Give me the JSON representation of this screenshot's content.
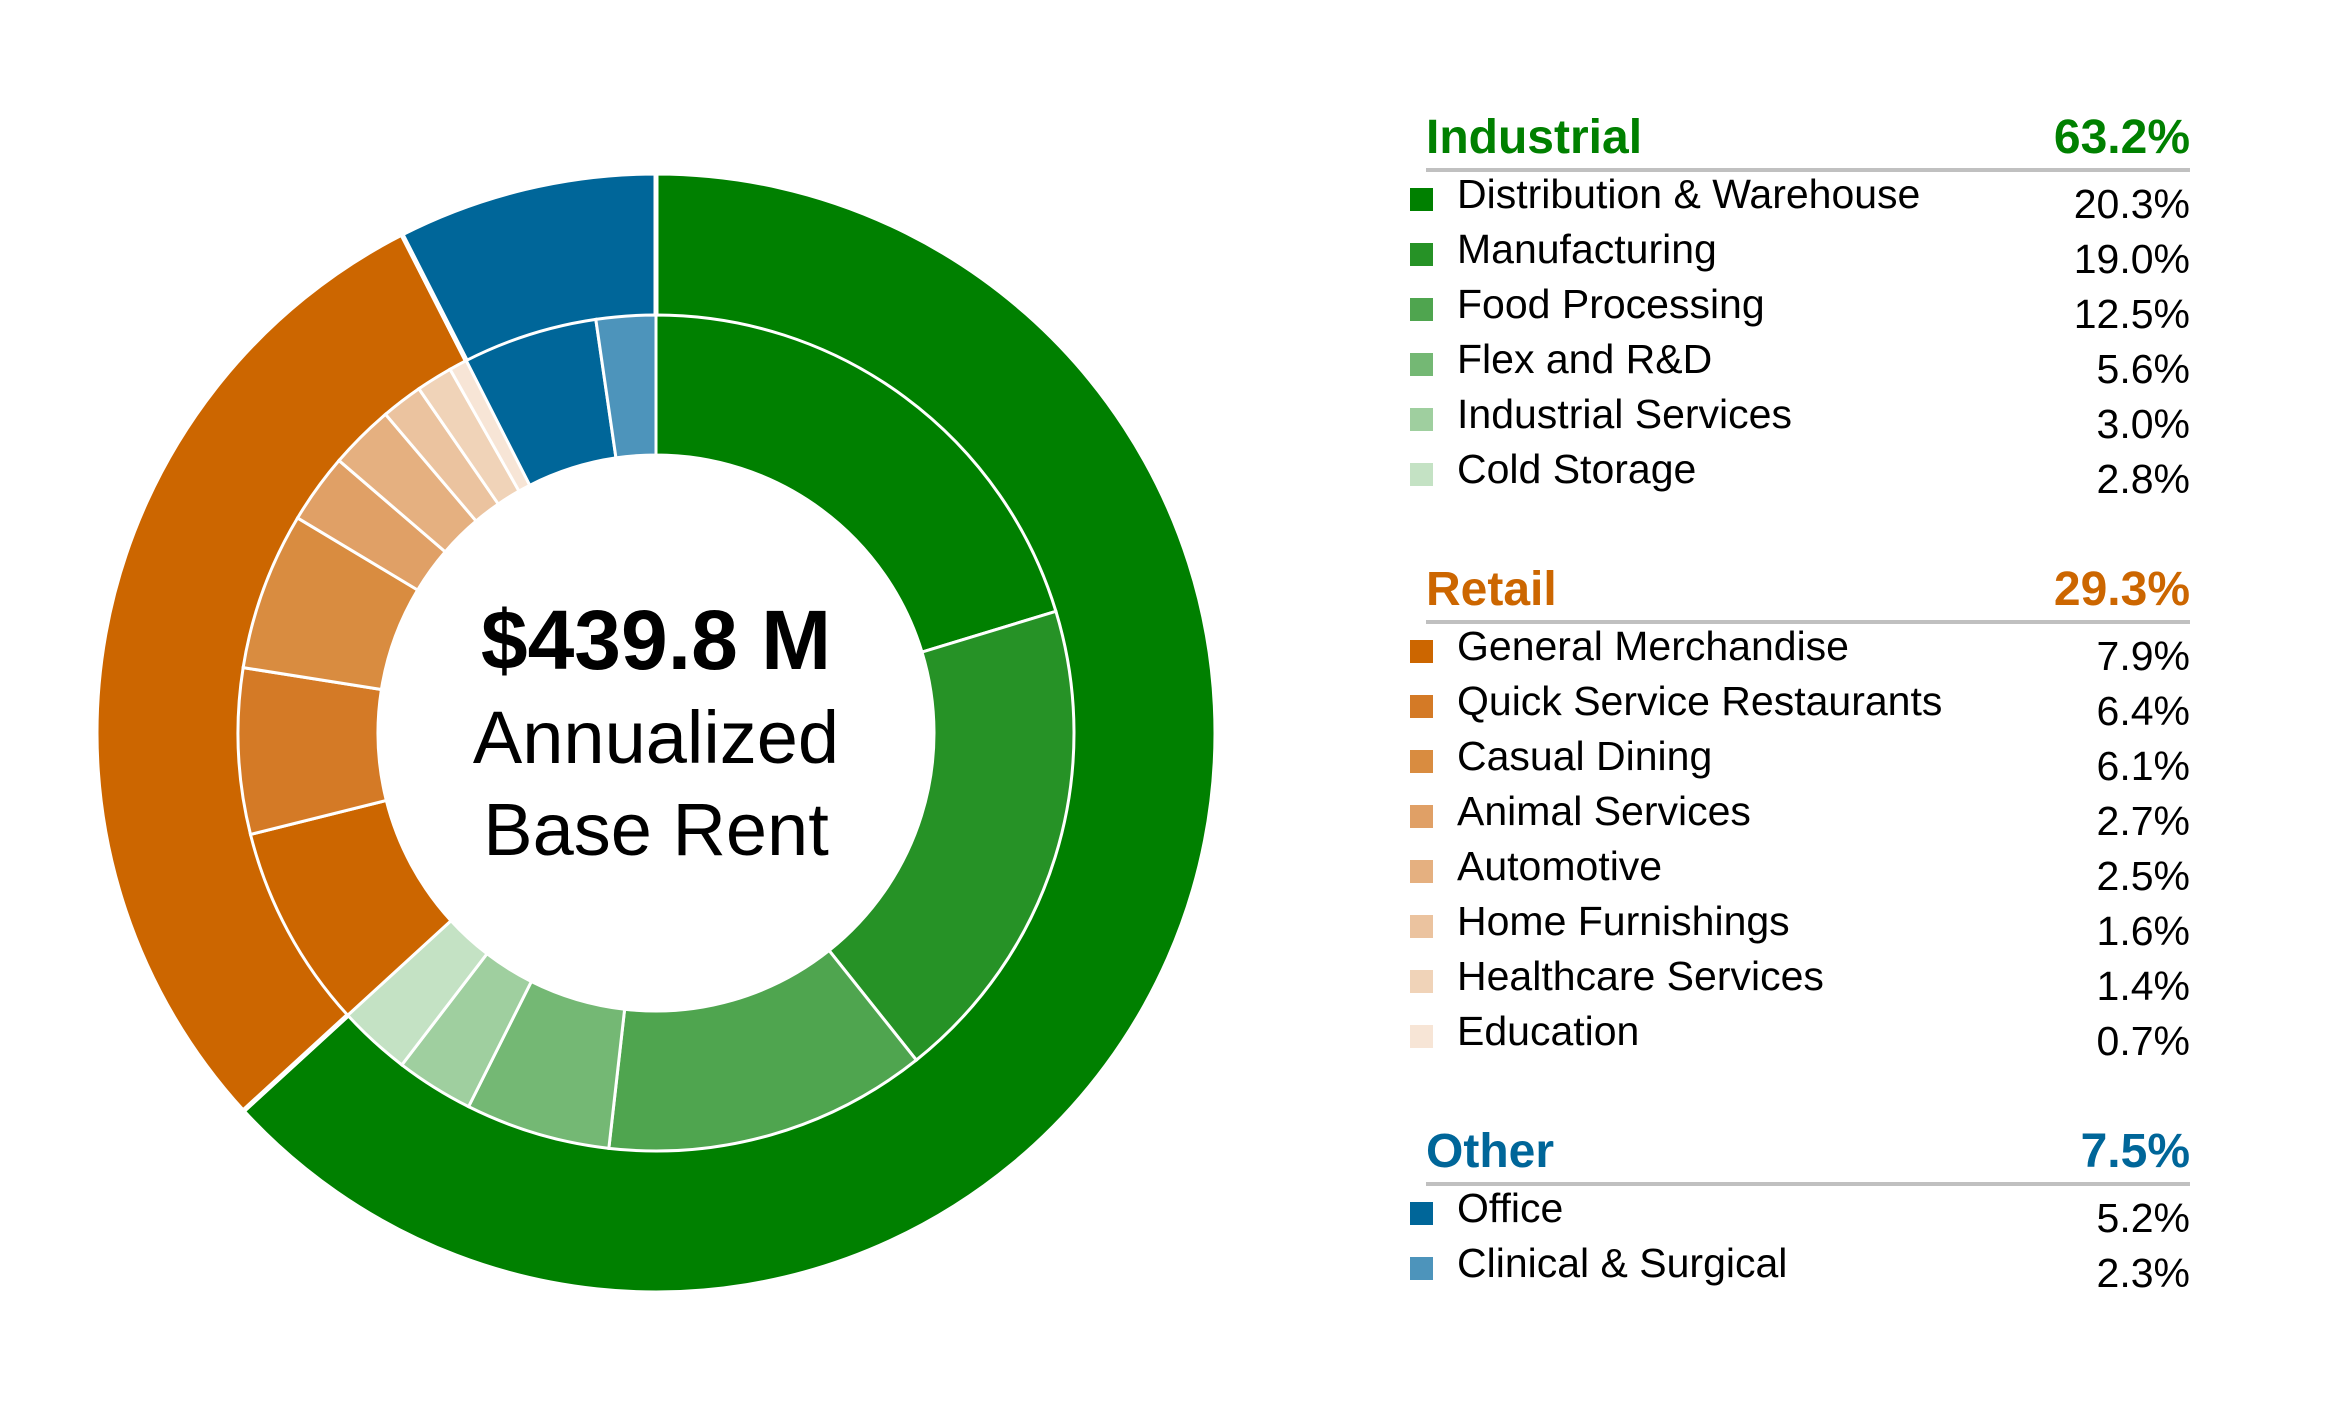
{
  "chart_data": {
    "type": "pie",
    "center": {
      "amount": "$439.8 M",
      "line1": "Annualized",
      "line2": "Base Rent"
    },
    "groups": [
      {
        "name": "Industrial",
        "percent": "63.2%",
        "value": 63.2,
        "color": "#008000",
        "items": [
          {
            "label": "Distribution & Warehouse",
            "percent": "20.3%",
            "value": 20.3,
            "color": "#008000"
          },
          {
            "label": "Manufacturing",
            "percent": "19.0%",
            "value": 19.0,
            "color": "#269226"
          },
          {
            "label": "Food Processing",
            "percent": "12.5%",
            "value": 12.5,
            "color": "#4fa54f"
          },
          {
            "label": "Flex and R&D",
            "percent": "5.6%",
            "value": 5.6,
            "color": "#74b874"
          },
          {
            "label": "Industrial Services",
            "percent": "3.0%",
            "value": 3.0,
            "color": "#9fcf9f"
          },
          {
            "label": "Cold Storage",
            "percent": "2.8%",
            "value": 2.8,
            "color": "#c4e2c4"
          }
        ]
      },
      {
        "name": "Retail",
        "percent": "29.3%",
        "value": 29.3,
        "color": "#cc6600",
        "items": [
          {
            "label": "General Merchandise",
            "percent": "7.9%",
            "value": 7.9,
            "color": "#cc6600"
          },
          {
            "label": "Quick Service Restaurants",
            "percent": "6.4%",
            "value": 6.4,
            "color": "#d47a26"
          },
          {
            "label": "Casual Dining",
            "percent": "6.1%",
            "value": 6.1,
            "color": "#d98c40"
          },
          {
            "label": "Animal Services",
            "percent": "2.7%",
            "value": 2.7,
            "color": "#e0a066"
          },
          {
            "label": "Automotive",
            "percent": "2.5%",
            "value": 2.5,
            "color": "#e5b080"
          },
          {
            "label": "Home Furnishings",
            "percent": "1.6%",
            "value": 1.6,
            "color": "#ebc39f"
          },
          {
            "label": "Healthcare Services",
            "percent": "1.4%",
            "value": 1.4,
            "color": "#f0d3b8"
          },
          {
            "label": "Education",
            "percent": "0.7%",
            "value": 0.7,
            "color": "#f7e5d6"
          }
        ]
      },
      {
        "name": "Other",
        "percent": "7.5%",
        "value": 7.5,
        "color": "#006699",
        "items": [
          {
            "label": "Office",
            "percent": "5.2%",
            "value": 5.2,
            "color": "#006699"
          },
          {
            "label": "Clinical & Surgical",
            "percent": "2.3%",
            "value": 2.3,
            "color": "#4d94bb"
          }
        ]
      }
    ]
  }
}
